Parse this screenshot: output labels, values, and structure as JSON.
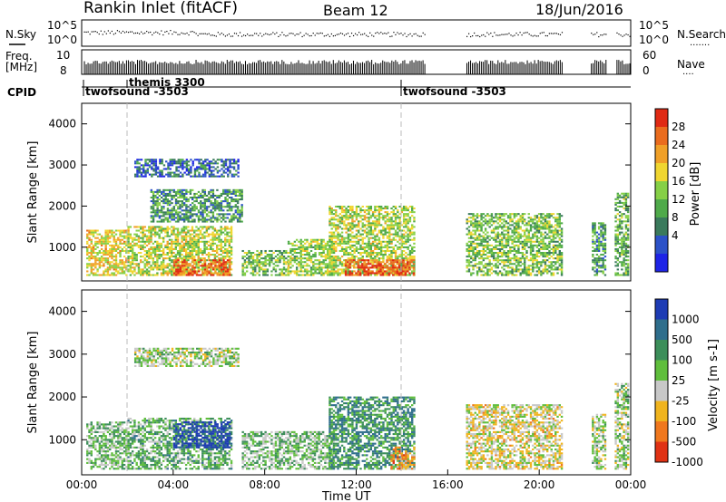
{
  "header": {
    "station": "Rankin Inlet (fitACF)",
    "beam": "Beam 12",
    "date": "18/Jun/2016"
  },
  "left_labels": {
    "nsky": "N.Sky",
    "freq": "Freq.",
    "mhz": "[MHz]",
    "cpid": "CPID"
  },
  "right_labels": {
    "nsearch": "N.Search",
    "nave": "Nave"
  },
  "cpid_labels": [
    {
      "label": "twofsound -3503",
      "start_time_h": 0.0
    },
    {
      "label": "themis 3300",
      "start_time_h": 1.9
    },
    {
      "label": "twofsound -3503",
      "start_time_h": 14.0
    }
  ],
  "small_axes": {
    "noise_left_ticks": [
      "10^5",
      "10^0"
    ],
    "noise_right_ticks": [
      "10^5",
      "10^0"
    ],
    "freq_left_ticks": [
      "10",
      "8"
    ],
    "nave_right_ticks": [
      "60",
      "0"
    ]
  },
  "chart_data": [
    {
      "type": "heatmap",
      "name": "power",
      "ylabel": "Slant Range [km]",
      "ylim": [
        180,
        4500
      ],
      "yticks": [
        1000,
        2000,
        3000,
        4000
      ],
      "xlim_hours": [
        0,
        24
      ],
      "colorbar_label": "Power [dB]",
      "colorbar_ticks": [
        "4",
        "8",
        "12",
        "16",
        "20",
        "24",
        "28"
      ],
      "colors": [
        "#1e24e6",
        "#2c52c8",
        "#3a7a5c",
        "#4faa4a",
        "#86d046",
        "#f0d630",
        "#f0a028",
        "#ea6c1e",
        "#e02a14"
      ],
      "regions": [
        {
          "t0": 0.2,
          "t1": 2.0,
          "r0": 300,
          "r1": 1400,
          "v": 0.62
        },
        {
          "t0": 2.0,
          "t1": 6.5,
          "r0": 300,
          "r1": 1500,
          "v": 0.55
        },
        {
          "t0": 2.3,
          "t1": 6.8,
          "r0": 2700,
          "r1": 3150,
          "v": 0.22
        },
        {
          "t0": 3.0,
          "t1": 7.0,
          "r0": 1600,
          "r1": 2400,
          "v": 0.34
        },
        {
          "t0": 4.0,
          "t1": 6.5,
          "r0": 300,
          "r1": 700,
          "v": 0.85
        },
        {
          "t0": 7.0,
          "t1": 9.0,
          "r0": 300,
          "r1": 900,
          "v": 0.45
        },
        {
          "t0": 9.0,
          "t1": 11.0,
          "r0": 300,
          "r1": 1200,
          "v": 0.5
        },
        {
          "t0": 10.8,
          "t1": 14.5,
          "r0": 300,
          "r1": 2000,
          "v": 0.52
        },
        {
          "t0": 11.5,
          "t1": 14.5,
          "r0": 300,
          "r1": 700,
          "v": 0.88
        },
        {
          "t0": 16.8,
          "t1": 21.0,
          "r0": 300,
          "r1": 1800,
          "v": 0.45
        },
        {
          "t0": 22.3,
          "t1": 22.9,
          "r0": 300,
          "r1": 1600,
          "v": 0.35
        },
        {
          "t0": 23.3,
          "t1": 23.9,
          "r0": 300,
          "r1": 2300,
          "v": 0.4
        }
      ]
    },
    {
      "type": "heatmap",
      "name": "velocity",
      "ylabel": "Slant Range [km]",
      "ylim": [
        180,
        4500
      ],
      "yticks": [
        1000,
        2000,
        3000,
        4000
      ],
      "xlim_hours": [
        0,
        24
      ],
      "xtick_labels": [
        "00:00",
        "04:00",
        "08:00",
        "12:00",
        "16:00",
        "20:00",
        "00:00"
      ],
      "xlabel": "Time UT",
      "colorbar_label": "Velocity [m s-1]",
      "colorbar_ticks": [
        "1000",
        "500",
        "100",
        "25",
        "-25",
        "-100",
        "-500",
        "-1000"
      ],
      "colors": [
        "#1e3cb4",
        "#2f6e8c",
        "#3c8e5a",
        "#5fbe3c",
        "#c8c8c8",
        "#f0b41e",
        "#f0781e",
        "#e03214"
      ],
      "regions": [
        {
          "t0": 0.2,
          "t1": 2.0,
          "r0": 300,
          "r1": 1400,
          "v": 0.45
        },
        {
          "t0": 2.0,
          "t1": 6.5,
          "r0": 300,
          "r1": 1500,
          "v": 0.4
        },
        {
          "t0": 4.0,
          "t1": 6.5,
          "r0": 800,
          "r1": 1400,
          "v": 0.05
        },
        {
          "t0": 2.3,
          "t1": 6.8,
          "r0": 2700,
          "r1": 3150,
          "v": 0.5
        },
        {
          "t0": 7.0,
          "t1": 11.0,
          "r0": 300,
          "r1": 1200,
          "v": 0.45
        },
        {
          "t0": 10.8,
          "t1": 14.5,
          "r0": 300,
          "r1": 2000,
          "v": 0.3
        },
        {
          "t0": 13.5,
          "t1": 14.5,
          "r0": 300,
          "r1": 800,
          "v": 0.72
        },
        {
          "t0": 16.8,
          "t1": 21.0,
          "r0": 300,
          "r1": 1800,
          "v": 0.6
        },
        {
          "t0": 22.3,
          "t1": 22.9,
          "r0": 300,
          "r1": 1600,
          "v": 0.5
        },
        {
          "t0": 23.3,
          "t1": 23.9,
          "r0": 300,
          "r1": 2300,
          "v": 0.5
        }
      ]
    }
  ]
}
